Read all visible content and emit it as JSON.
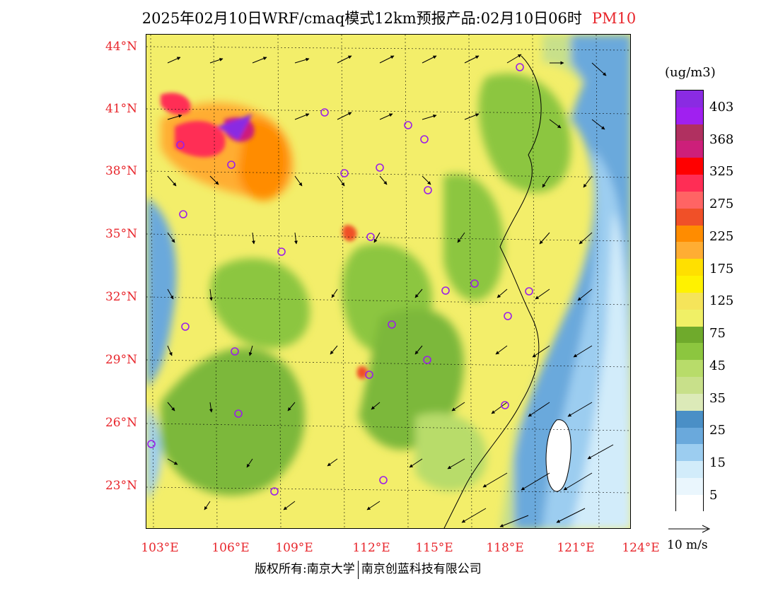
{
  "title": {
    "main": "2025年02月10日WRF/cmaq模式12km预报产品:02月10日06时",
    "variable": "PM10"
  },
  "map": {
    "lat_labels": [
      "44°N",
      "41°N",
      "38°N",
      "35°N",
      "32°N",
      "29°N",
      "26°N",
      "23°N"
    ],
    "lon_labels": [
      "103°E",
      "106°E",
      "109°E",
      "112°E",
      "115°E",
      "118°E",
      "121°E",
      "124°E"
    ],
    "lat_range": [
      21,
      44.6
    ],
    "lon_range": [
      102.7,
      124
    ]
  },
  "legend": {
    "unit": "(ug/m3)",
    "labels": [
      "403",
      "368",
      "325",
      "275",
      "225",
      "175",
      "125",
      "75",
      "45",
      "35",
      "25",
      "15",
      "5"
    ],
    "colors": [
      "#8a2be2",
      "#a020f0",
      "#b03060",
      "#cd1f7a",
      "#ff0000",
      "#ff2d55",
      "#ff6464",
      "#f05028",
      "#ff8c00",
      "#ffad33",
      "#ffe000",
      "#fff200",
      "#f5e45a",
      "#f0f066",
      "#6faa2c",
      "#8cc63f",
      "#b8dc6a",
      "#c8e08a",
      "#dceab8",
      "#4a8fc6",
      "#6aa9dc",
      "#9ccdf0",
      "#d2ecfa",
      "#eaf6fd",
      "#ffffff"
    ],
    "vector_key": "10 m/s"
  },
  "footer": {
    "left": "版权所有:南京大学",
    "right": "南京创蓝科技有限公司"
  }
}
